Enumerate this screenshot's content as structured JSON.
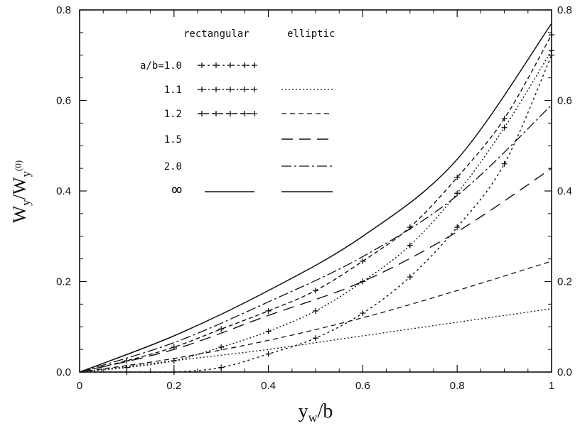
{
  "chart_data": {
    "type": "line",
    "xlabel": "y_w/b",
    "ylabel": "W_y/W_y(0)",
    "xlim": [
      0,
      1
    ],
    "ylim": [
      0,
      0.8
    ],
    "x_ticks": [
      "0",
      "0.2",
      "0.4",
      "0.6",
      "0.8",
      "1"
    ],
    "y_ticks": [
      "0.0",
      "0.2",
      "0.4",
      "0.6",
      "0.8"
    ],
    "y_ticks_right": [
      "0.0",
      "0.2",
      "0.4",
      "0.6",
      "0.8"
    ],
    "grid": false,
    "legend": {
      "placement": "top-center",
      "header_rectangular": "rectangular",
      "header_elliptic": "elliptic",
      "ratio_prefix": "a/b=",
      "ratios": [
        "1.0",
        "1.1",
        "1.2",
        "1.5",
        "2.0",
        "∞"
      ]
    },
    "series": [
      {
        "ratio": "1.0",
        "kind": "rectangular",
        "x": [
          0,
          0.1,
          0.2,
          0.3,
          0.4,
          0.5,
          0.6,
          0.7,
          0.8,
          0.9,
          1.0
        ],
        "y": [
          0,
          0.0,
          0.0,
          0.01,
          0.04,
          0.075,
          0.13,
          0.21,
          0.32,
          0.46,
          0.7
        ]
      },
      {
        "ratio": "1.1",
        "kind": "rectangular",
        "x": [
          0,
          0.1,
          0.2,
          0.3,
          0.4,
          0.5,
          0.6,
          0.7,
          0.8,
          0.9,
          1.0
        ],
        "y": [
          0,
          0.01,
          0.025,
          0.055,
          0.09,
          0.135,
          0.2,
          0.28,
          0.395,
          0.54,
          0.71
        ]
      },
      {
        "ratio": "1.2",
        "kind": "rectangular",
        "x": [
          0,
          0.1,
          0.2,
          0.3,
          0.4,
          0.5,
          0.6,
          0.7,
          0.8,
          0.9,
          1.0
        ],
        "y": [
          0,
          0.025,
          0.055,
          0.095,
          0.135,
          0.18,
          0.245,
          0.32,
          0.43,
          0.56,
          0.745
        ]
      },
      {
        "ratio": "1.1",
        "kind": "elliptic",
        "x": [
          0,
          0.2,
          0.4,
          0.6,
          0.8,
          1.0
        ],
        "y": [
          0,
          0.025,
          0.05,
          0.08,
          0.11,
          0.14
        ]
      },
      {
        "ratio": "1.2",
        "kind": "elliptic",
        "x": [
          0,
          0.2,
          0.4,
          0.6,
          0.8,
          1.0
        ],
        "y": [
          0,
          0.03,
          0.07,
          0.12,
          0.18,
          0.245
        ]
      },
      {
        "ratio": "1.5",
        "kind": "elliptic",
        "x": [
          0,
          0.2,
          0.4,
          0.6,
          0.8,
          1.0
        ],
        "y": [
          0,
          0.05,
          0.125,
          0.2,
          0.31,
          0.45
        ]
      },
      {
        "ratio": "2.0",
        "kind": "elliptic",
        "x": [
          0,
          0.2,
          0.4,
          0.6,
          0.8,
          1.0
        ],
        "y": [
          0,
          0.065,
          0.155,
          0.255,
          0.39,
          0.59
        ]
      },
      {
        "ratio": "∞",
        "kind": "rectangular/elliptic",
        "x": [
          0,
          0.2,
          0.4,
          0.6,
          0.8,
          1.0
        ],
        "y": [
          0,
          0.08,
          0.18,
          0.3,
          0.47,
          0.77
        ]
      }
    ]
  }
}
